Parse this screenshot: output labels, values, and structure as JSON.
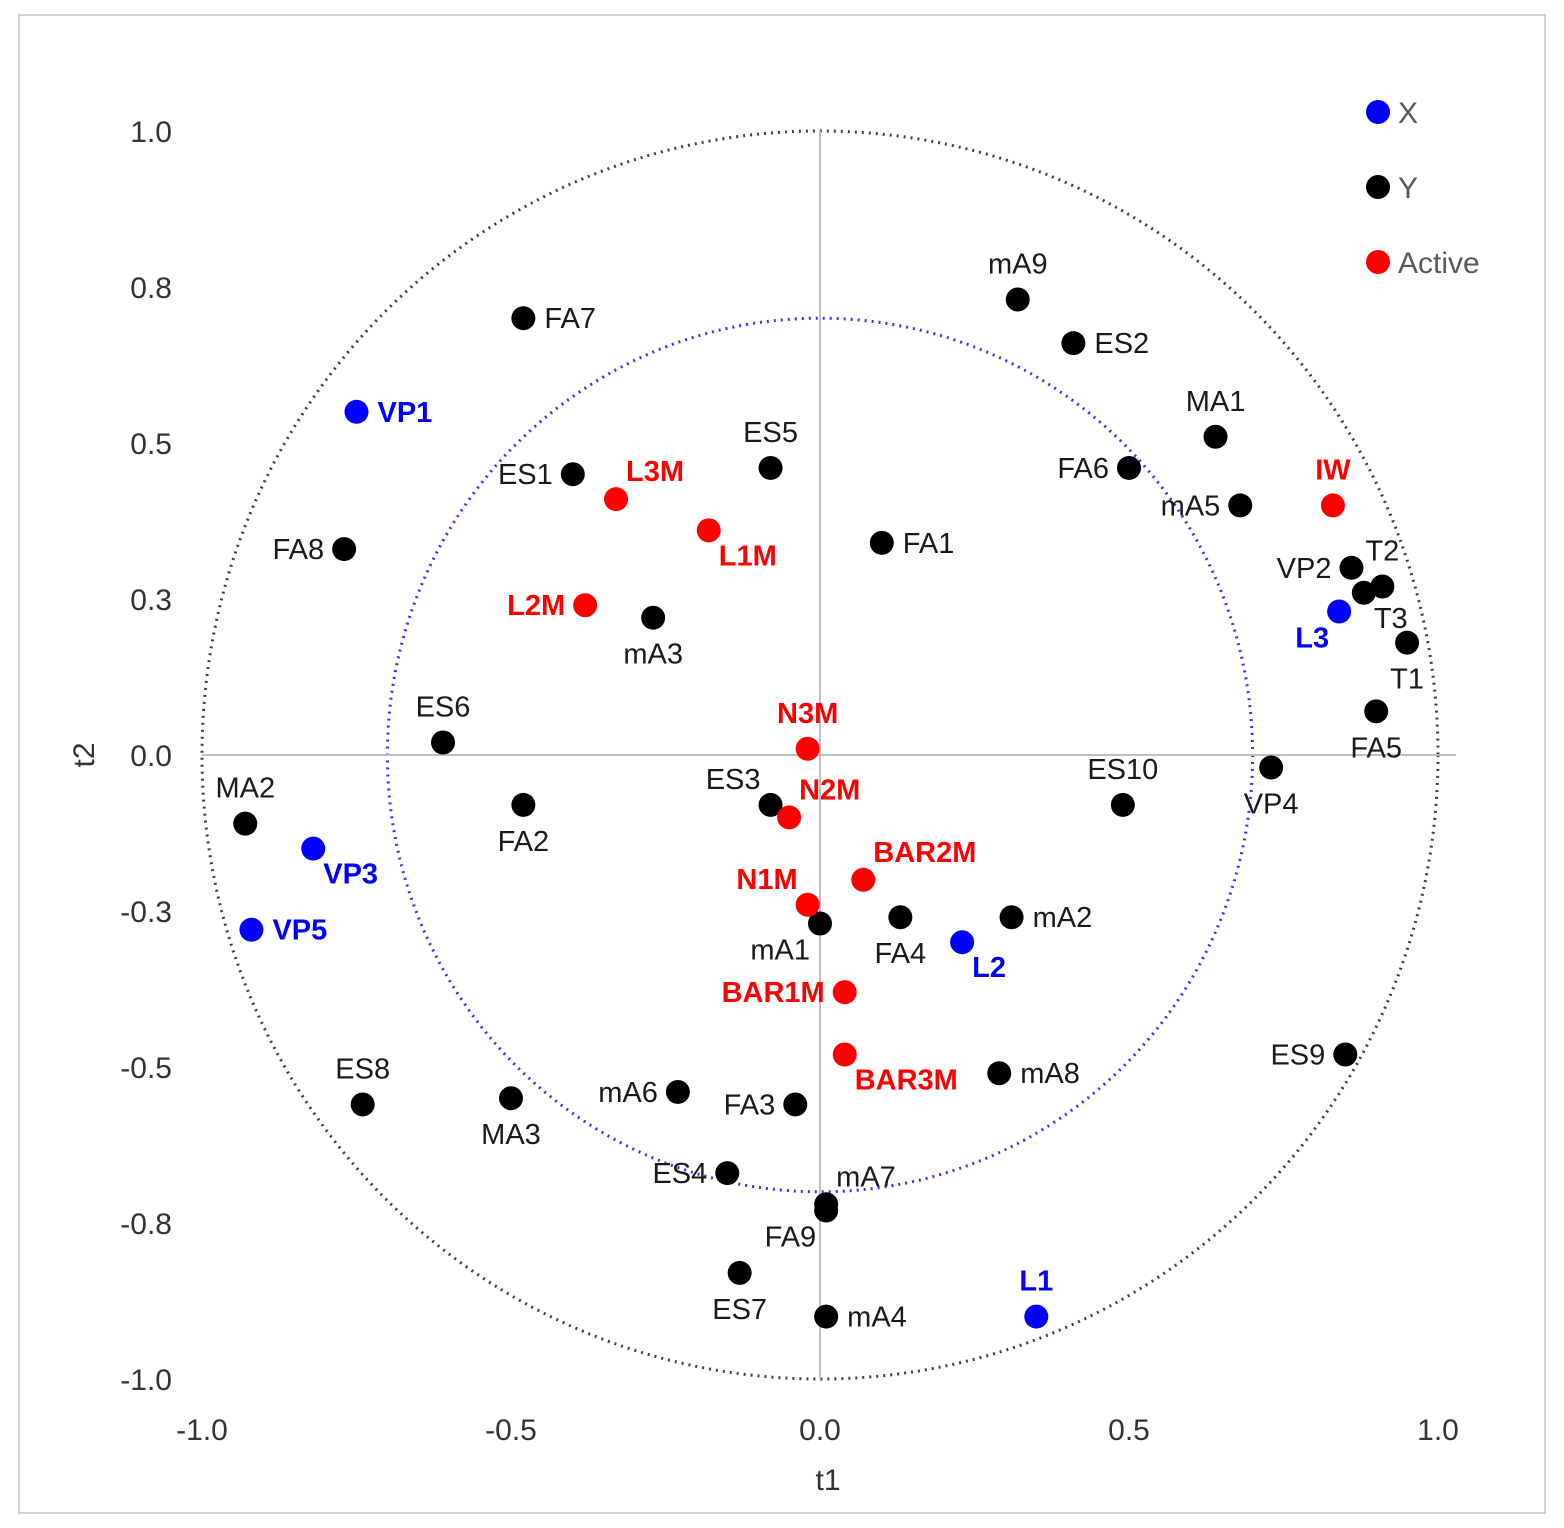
{
  "chart_data": {
    "type": "scatter",
    "title": "",
    "xlabel": "t1",
    "ylabel": "t2",
    "xlim": [
      -1.0,
      1.0
    ],
    "ylim": [
      -1.0,
      1.0
    ],
    "x_ticks": [
      "-1.0",
      "-0.5",
      "0.0",
      "0.5",
      "1.0"
    ],
    "y_ticks": [
      "1.0",
      "0.8",
      "0.5",
      "0.3",
      "0.0",
      "-0.3",
      "-0.5",
      "-0.8",
      "-1.0"
    ],
    "y_tick_values": [
      1.0,
      0.75,
      0.5,
      0.25,
      0.0,
      -0.25,
      -0.5,
      -0.75,
      -1.0
    ],
    "grid": false,
    "circles": [
      {
        "radius": 1.0,
        "style": "dotted",
        "color": "#404040"
      },
      {
        "radius": 0.7,
        "style": "dotted",
        "color": "#3333ff"
      }
    ],
    "legend_position": "top-right",
    "series": [
      {
        "name": "X",
        "color": "#0000ff",
        "bold": true,
        "points": [
          {
            "label": "VP1",
            "x": -0.75,
            "y": 0.55,
            "pos": "right"
          },
          {
            "label": "VP3",
            "x": -0.82,
            "y": -0.15,
            "pos": "right-below"
          },
          {
            "label": "VP5",
            "x": -0.92,
            "y": -0.28,
            "pos": "right"
          },
          {
            "label": "L3",
            "x": 0.84,
            "y": 0.23,
            "pos": "left-below"
          },
          {
            "label": "L2",
            "x": 0.23,
            "y": -0.3,
            "pos": "right-below"
          },
          {
            "label": "L1",
            "x": 0.35,
            "y": -0.9,
            "pos": "above"
          }
        ]
      },
      {
        "name": "Y",
        "color": "#000000",
        "bold": false,
        "points": [
          {
            "label": "mA9",
            "x": 0.32,
            "y": 0.73,
            "pos": "above"
          },
          {
            "label": "ES2",
            "x": 0.41,
            "y": 0.66,
            "pos": "right"
          },
          {
            "label": "MA1",
            "x": 0.64,
            "y": 0.51,
            "pos": "above"
          },
          {
            "label": "FA6",
            "x": 0.5,
            "y": 0.46,
            "pos": "left"
          },
          {
            "label": "mA5",
            "x": 0.68,
            "y": 0.4,
            "pos": "left"
          },
          {
            "label": "VP2",
            "x": 0.86,
            "y": 0.3,
            "pos": "left"
          },
          {
            "label": "T2",
            "x": 0.91,
            "y": 0.27,
            "pos": "above"
          },
          {
            "label": "T3",
            "x": 0.88,
            "y": 0.26,
            "pos": "right-below"
          },
          {
            "label": "T1",
            "x": 0.95,
            "y": 0.18,
            "pos": "below"
          },
          {
            "label": "FA5",
            "x": 0.9,
            "y": 0.07,
            "pos": "below"
          },
          {
            "label": "VP4",
            "x": 0.73,
            "y": -0.02,
            "pos": "below"
          },
          {
            "label": "ES10",
            "x": 0.49,
            "y": -0.08,
            "pos": "above"
          },
          {
            "label": "ES9",
            "x": 0.85,
            "y": -0.48,
            "pos": "left"
          },
          {
            "label": "FA7",
            "x": -0.48,
            "y": 0.7,
            "pos": "right"
          },
          {
            "label": "ES5",
            "x": -0.08,
            "y": 0.46,
            "pos": "above"
          },
          {
            "label": "ES1",
            "x": -0.4,
            "y": 0.45,
            "pos": "left"
          },
          {
            "label": "FA1",
            "x": 0.1,
            "y": 0.34,
            "pos": "right"
          },
          {
            "label": "FA8",
            "x": -0.77,
            "y": 0.33,
            "pos": "left"
          },
          {
            "label": "mA3",
            "x": -0.27,
            "y": 0.22,
            "pos": "below"
          },
          {
            "label": "ES6",
            "x": -0.61,
            "y": 0.02,
            "pos": "above"
          },
          {
            "label": "MA2",
            "x": -0.93,
            "y": -0.11,
            "pos": "above"
          },
          {
            "label": "FA2",
            "x": -0.48,
            "y": -0.08,
            "pos": "below"
          },
          {
            "label": "ES3",
            "x": -0.08,
            "y": -0.08,
            "pos": "left-above"
          },
          {
            "label": "mA1",
            "x": 0.0,
            "y": -0.27,
            "pos": "left-below"
          },
          {
            "label": "FA4",
            "x": 0.13,
            "y": -0.26,
            "pos": "below"
          },
          {
            "label": "mA2",
            "x": 0.31,
            "y": -0.26,
            "pos": "right"
          },
          {
            "label": "mA8",
            "x": 0.29,
            "y": -0.51,
            "pos": "right"
          },
          {
            "label": "ES8",
            "x": -0.74,
            "y": -0.56,
            "pos": "above"
          },
          {
            "label": "MA3",
            "x": -0.5,
            "y": -0.55,
            "pos": "below"
          },
          {
            "label": "mA6",
            "x": -0.23,
            "y": -0.54,
            "pos": "left"
          },
          {
            "label": "FA3",
            "x": -0.04,
            "y": -0.56,
            "pos": "left"
          },
          {
            "label": "ES4",
            "x": -0.15,
            "y": -0.67,
            "pos": "left"
          },
          {
            "label": "mA7",
            "x": 0.01,
            "y": -0.72,
            "pos": "right-above"
          },
          {
            "label": "FA9",
            "x": 0.01,
            "y": -0.73,
            "pos": "left-below"
          },
          {
            "label": "ES7",
            "x": -0.13,
            "y": -0.83,
            "pos": "below"
          },
          {
            "label": "mA4",
            "x": 0.01,
            "y": -0.9,
            "pos": "right"
          }
        ]
      },
      {
        "name": "Active",
        "color": "#ff0000",
        "bold": true,
        "points": [
          {
            "label": "L3M",
            "x": -0.33,
            "y": 0.41,
            "pos": "right-above"
          },
          {
            "label": "L1M",
            "x": -0.18,
            "y": 0.36,
            "pos": "right-below"
          },
          {
            "label": "L2M",
            "x": -0.38,
            "y": 0.24,
            "pos": "left"
          },
          {
            "label": "IW",
            "x": 0.83,
            "y": 0.4,
            "pos": "above"
          },
          {
            "label": "N3M",
            "x": -0.02,
            "y": 0.01,
            "pos": "above"
          },
          {
            "label": "N2M",
            "x": -0.05,
            "y": -0.1,
            "pos": "right-above"
          },
          {
            "label": "N1M",
            "x": -0.02,
            "y": -0.24,
            "pos": "left-above"
          },
          {
            "label": "BAR2M",
            "x": 0.07,
            "y": -0.2,
            "pos": "right-above"
          },
          {
            "label": "BAR1M",
            "x": 0.04,
            "y": -0.38,
            "pos": "left"
          },
          {
            "label": "BAR3M",
            "x": 0.04,
            "y": -0.48,
            "pos": "right-below"
          }
        ]
      }
    ]
  }
}
